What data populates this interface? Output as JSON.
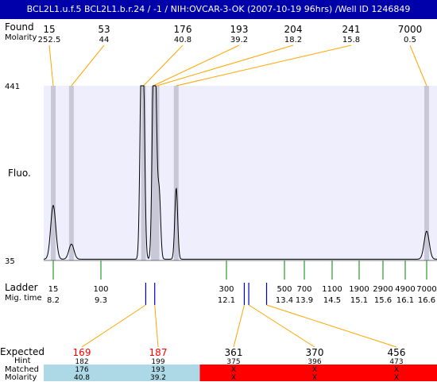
{
  "header": {
    "title": "BCL2L1.u.f.5  BCL2L1.b.r.24 / -1 / NIH:OVCAR-3-OK (2007-10-19 96hrs) /Well ID 1246849"
  },
  "labels": {
    "found": "Found",
    "molarity": "Molarity",
    "fluo": "Fluo.",
    "ladder": "Ladder",
    "mig_time": "Mig. time",
    "expected": "Expected",
    "hint": "Hint",
    "matched": "Matched",
    "molarity_bottom": "Molarity"
  },
  "colors": {
    "title_bg": "#0000aa",
    "plot_bg": "#eeeefc",
    "orange": "#ffa500",
    "green": "#008000",
    "blue_marker": "#0000cc",
    "red_text": "#ff0000",
    "matched_bg": "#add8e6",
    "unmatched_bg": "#ff0000",
    "band": "#c8c8d8"
  },
  "chart_data": {
    "type": "line",
    "title": "BCL2L1.u.f.5  BCL2L1.b.r.24 / -1 / NIH:OVCAR-3-OK (2007-10-19 96hrs) /Well ID 1246849",
    "ylabel": "Fluo.",
    "ytick_labels": [
      "441",
      "35"
    ],
    "ylim": [
      35,
      441
    ],
    "found_peaks": [
      {
        "size": "15",
        "molarity": "252.5",
        "time": 8.2
      },
      {
        "size": "53",
        "molarity": "44",
        "time": 8.62
      },
      {
        "size": "176",
        "molarity": "40.8",
        "time": 10.25
      },
      {
        "size": "193",
        "molarity": "39.2",
        "time": 10.47
      },
      {
        "size": "204",
        "molarity": "18.2",
        "time": 10.55
      },
      {
        "size": "241",
        "molarity": "15.8",
        "time": 10.98
      },
      {
        "size": "7000",
        "molarity": "0.5",
        "time": 16.6
      }
    ],
    "trace_peaks": [
      {
        "time": 8.2,
        "height": 160
      },
      {
        "time": 8.62,
        "height": 70
      },
      {
        "time": 10.2,
        "height": 441
      },
      {
        "time": 10.25,
        "height": 400
      },
      {
        "time": 10.47,
        "height": 420
      },
      {
        "time": 10.52,
        "height": 380
      },
      {
        "time": 10.6,
        "height": 190
      },
      {
        "time": 10.98,
        "height": 200
      },
      {
        "time": 16.6,
        "height": 100
      }
    ],
    "ladder": [
      {
        "size": "15",
        "time": "8.2"
      },
      {
        "size": "100",
        "time": "9.3"
      },
      {
        "size": "300",
        "time": "12.1"
      },
      {
        "size": "500",
        "time": "13.4"
      },
      {
        "size": "700",
        "time": "13.9"
      },
      {
        "size": "1100",
        "time": "14.5"
      },
      {
        "size": "1900",
        "time": "15.1"
      },
      {
        "size": "2900",
        "time": "15.6"
      },
      {
        "size": "4900",
        "time": "16.1"
      },
      {
        "size": "7000",
        "time": "16.6"
      }
    ],
    "expected": [
      {
        "expected": "169",
        "hint": "182",
        "matched": "176",
        "molarity": "40.8",
        "status": "matched",
        "marker_time": 10.3
      },
      {
        "expected": "187",
        "hint": "199",
        "matched": "193",
        "molarity": "39.2",
        "status": "matched",
        "marker_time": 10.5
      },
      {
        "expected": "361",
        "hint": "375",
        "matched": "X",
        "molarity": "X",
        "status": "unmatched",
        "marker_time": 12.5
      },
      {
        "expected": "370",
        "hint": "396",
        "matched": "X",
        "molarity": "X",
        "status": "unmatched",
        "marker_time": 12.6
      },
      {
        "expected": "456",
        "hint": "473",
        "matched": "X",
        "molarity": "X",
        "status": "unmatched",
        "marker_time": 13.0
      }
    ]
  }
}
